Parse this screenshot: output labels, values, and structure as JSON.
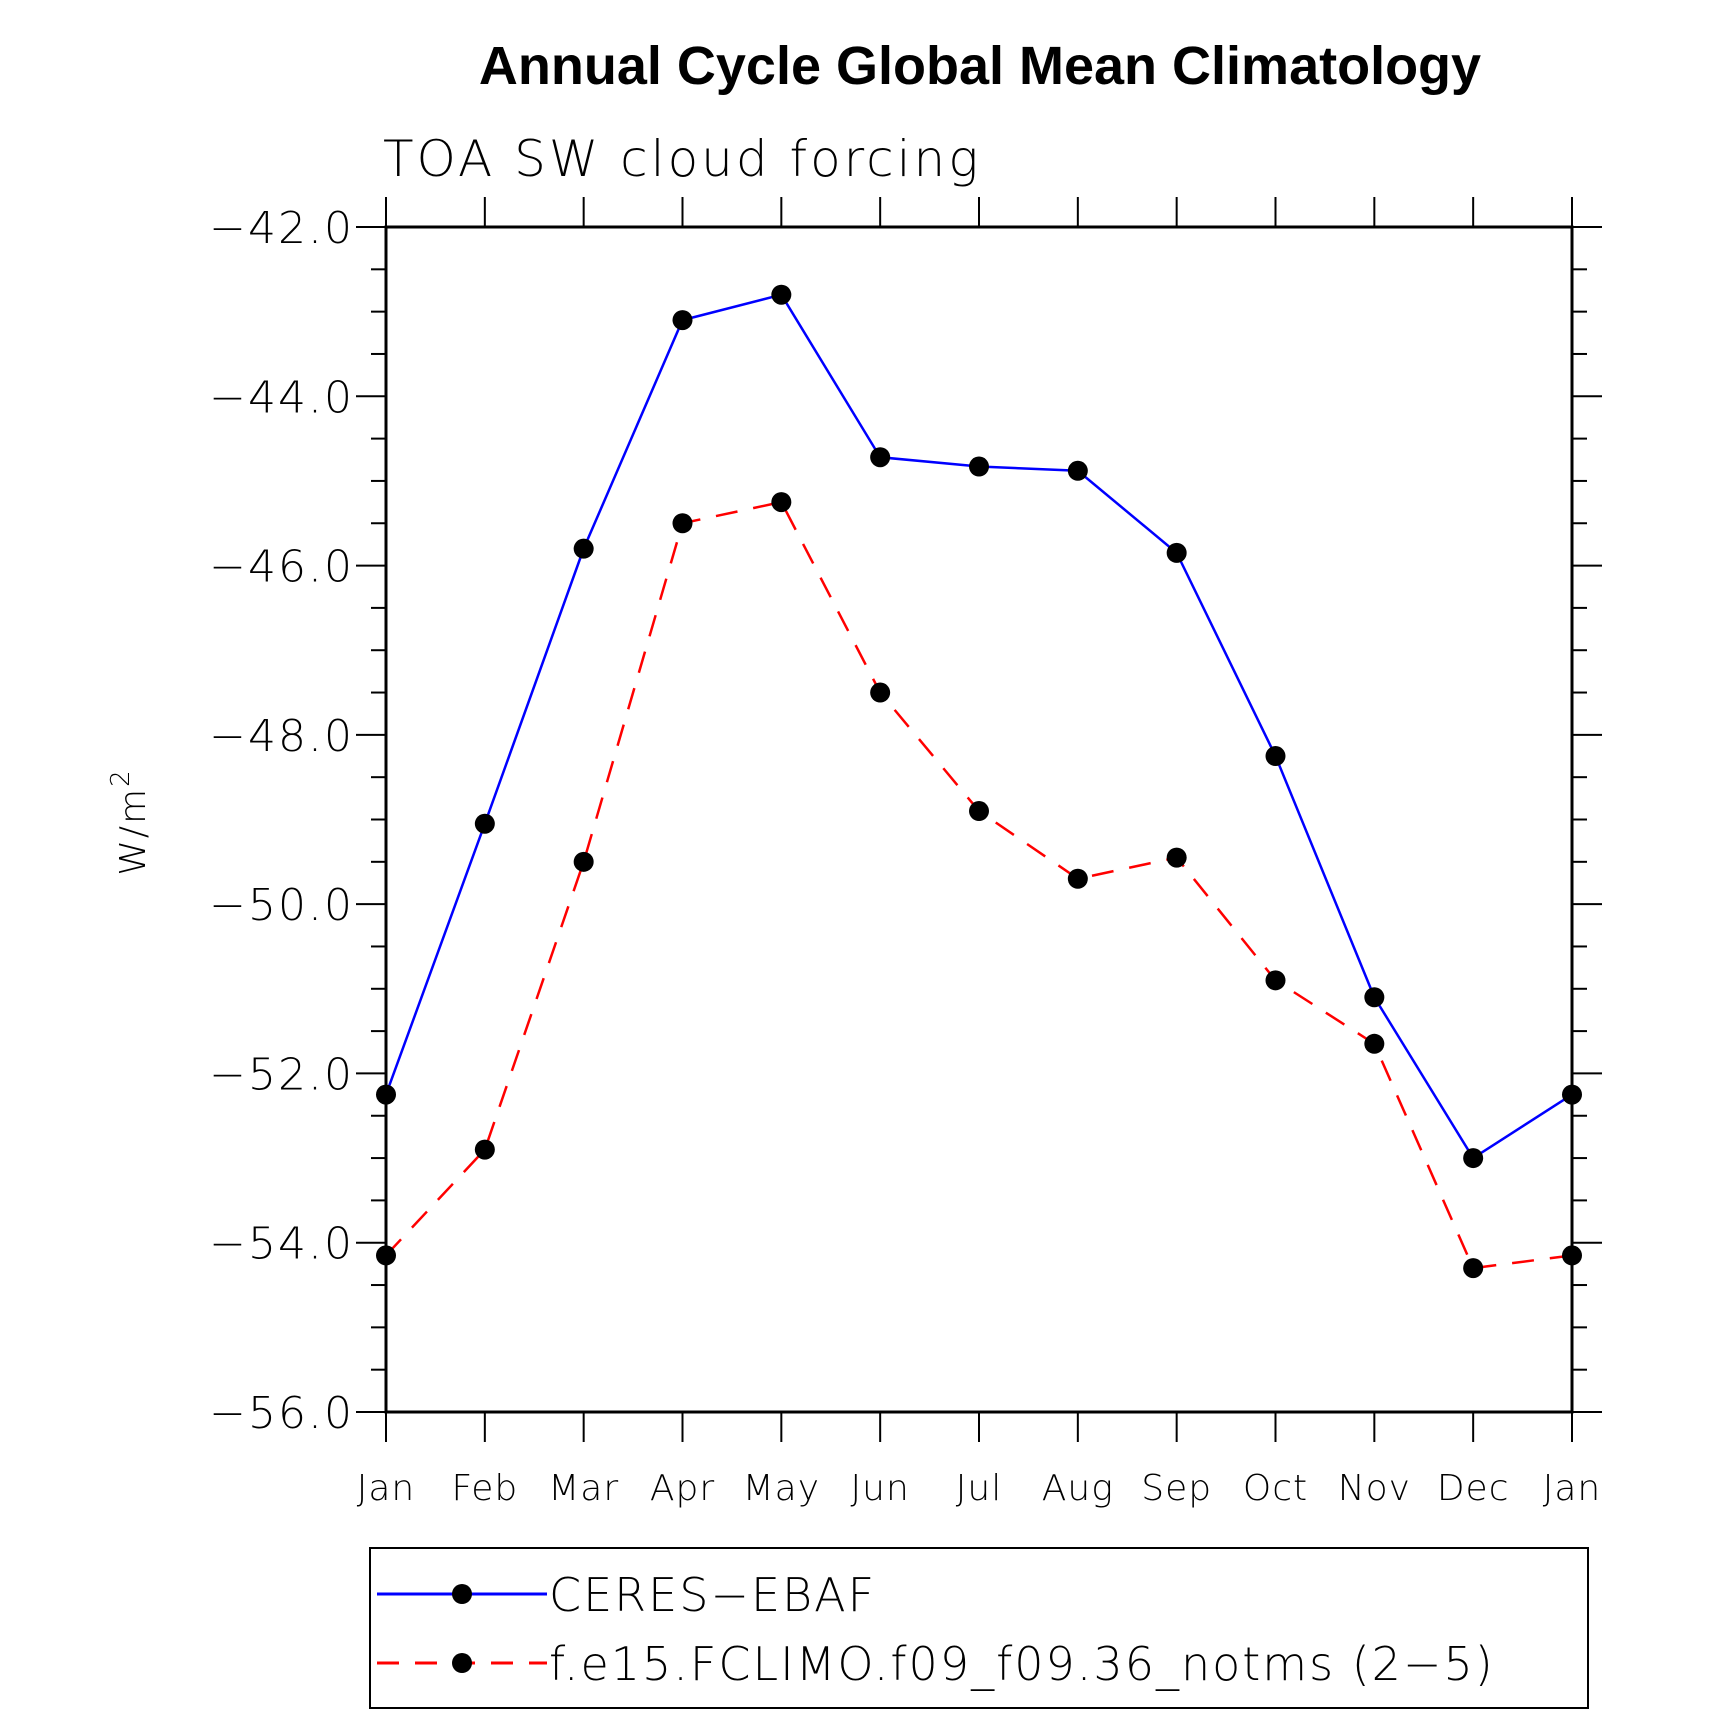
{
  "chart_data": {
    "type": "line",
    "title": "Annual Cycle Global Mean Climatology",
    "subtitle": "TOA SW cloud forcing",
    "ylabel": "W/m",
    "ylabel_sup": "2",
    "xlabel": "",
    "categories": [
      "Jan",
      "Feb",
      "Mar",
      "Apr",
      "May",
      "Jun",
      "Jul",
      "Aug",
      "Sep",
      "Oct",
      "Nov",
      "Dec",
      "Jan"
    ],
    "ylim": [
      -56.0,
      -42.0
    ],
    "yticks": [
      -42.0,
      -44.0,
      -46.0,
      -48.0,
      -50.0,
      -52.0,
      -54.0,
      -56.0
    ],
    "ytick_labels": [
      "−42.0",
      "−44.0",
      "−46.0",
      "−48.0",
      "−50.0",
      "−52.0",
      "−54.0",
      "−56.0"
    ],
    "legend_position": "bottom",
    "series": [
      {
        "name": "CERES−EBAF",
        "color": "#0000ff",
        "dash": "solid",
        "marker": "filled-circle",
        "values": [
          -52.25,
          -49.05,
          -45.8,
          -43.1,
          -42.8,
          -44.72,
          -44.83,
          -44.88,
          -45.85,
          -48.25,
          -51.1,
          -53.0,
          -52.25
        ]
      },
      {
        "name": "f.e15.FCLIMO.f09_f09.36_notms (2−5)",
        "color": "#ff0000",
        "dash": "dashed",
        "marker": "filled-circle",
        "values": [
          -54.15,
          -52.9,
          -49.5,
          -45.5,
          -45.25,
          -47.5,
          -48.9,
          -49.7,
          -49.45,
          -50.9,
          -51.65,
          -54.3,
          -54.15
        ]
      }
    ]
  }
}
